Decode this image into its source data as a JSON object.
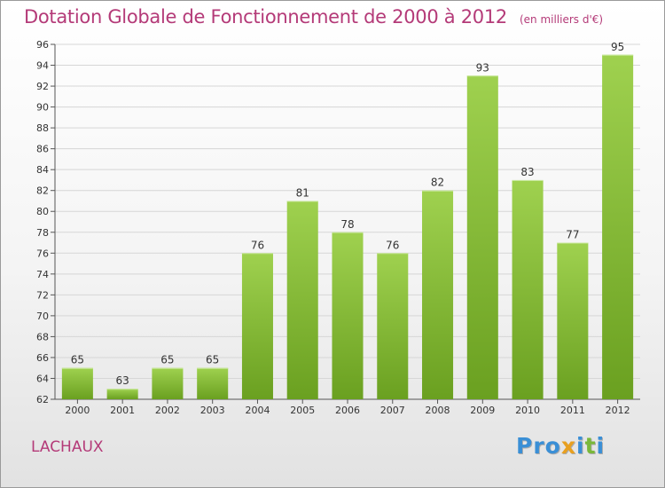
{
  "title": "Dotation Globale de Fonctionnement de 2000 à 2012",
  "subtitle": "(en milliers d'€)",
  "city": "LACHAUX",
  "logo": {
    "letters": [
      "P",
      "r",
      "o",
      "x",
      "i",
      "t",
      "i"
    ],
    "colors": [
      "#3a8fd6",
      "#3a8fd6",
      "#3a8fd6",
      "#e8a020",
      "#3a8fd6",
      "#7ab83a",
      "#3a8fd6"
    ]
  },
  "chart_data": {
    "type": "bar",
    "categories": [
      "2000",
      "2001",
      "2002",
      "2003",
      "2004",
      "2005",
      "2006",
      "2007",
      "2008",
      "2009",
      "2010",
      "2011",
      "2012"
    ],
    "values": [
      65,
      63,
      65,
      65,
      76,
      81,
      78,
      76,
      82,
      93,
      83,
      77,
      95
    ],
    "ylim": [
      62,
      96
    ],
    "yticks": [
      62,
      64,
      66,
      68,
      70,
      72,
      74,
      76,
      78,
      80,
      82,
      84,
      86,
      88,
      90,
      92,
      94,
      96
    ],
    "grid": true,
    "bar_color_top": "#9fd14f",
    "bar_color_bottom": "#6aa020",
    "grid_color": "#d6d6d6"
  }
}
